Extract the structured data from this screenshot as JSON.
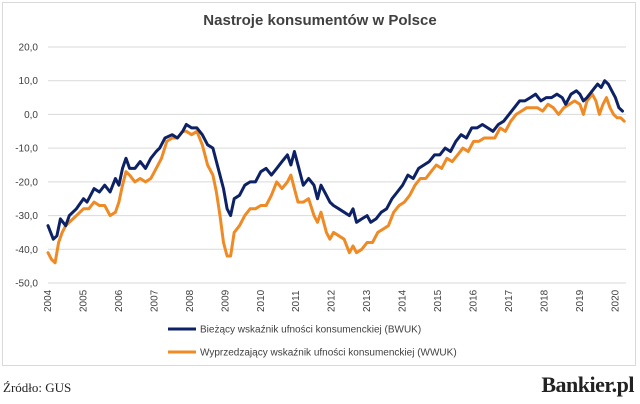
{
  "chart_data": {
    "type": "line",
    "title": "Nastroje konsumentów w Polsce",
    "xlabel": "",
    "ylabel": "",
    "ylim": [
      -50,
      20
    ],
    "y_ticks": [
      "20,0",
      "10,0",
      "0,0",
      "-10,0",
      "-20,0",
      "-30,0",
      "-40,0",
      "-50,0"
    ],
    "x_ticks": [
      "2004",
      "2005",
      "2006",
      "2007",
      "2008",
      "2009",
      "2010",
      "2011",
      "2012",
      "2013",
      "2014",
      "2015",
      "2016",
      "2017",
      "2018",
      "2019",
      "2020"
    ],
    "xlim": [
      2004.0,
      2020.3
    ],
    "grid": "horizontal",
    "legend_position": "bottom",
    "series": [
      {
        "name": "Bieżący wskaźnik ufności konsumenckiej (BWUK)",
        "color": "#0d2266",
        "points": [
          [
            2004.0,
            -33
          ],
          [
            2004.15,
            -37
          ],
          [
            2004.25,
            -36
          ],
          [
            2004.35,
            -31
          ],
          [
            2004.5,
            -33
          ],
          [
            2004.6,
            -30
          ],
          [
            2004.8,
            -28
          ],
          [
            2005.0,
            -25
          ],
          [
            2005.1,
            -26
          ],
          [
            2005.3,
            -22
          ],
          [
            2005.45,
            -23
          ],
          [
            2005.6,
            -21
          ],
          [
            2005.75,
            -23
          ],
          [
            2005.9,
            -19
          ],
          [
            2006.0,
            -21
          ],
          [
            2006.1,
            -16
          ],
          [
            2006.2,
            -13
          ],
          [
            2006.3,
            -16
          ],
          [
            2006.45,
            -16
          ],
          [
            2006.6,
            -14
          ],
          [
            2006.75,
            -16
          ],
          [
            2006.9,
            -13
          ],
          [
            2007.05,
            -11
          ],
          [
            2007.15,
            -10
          ],
          [
            2007.3,
            -7
          ],
          [
            2007.5,
            -6
          ],
          [
            2007.65,
            -7
          ],
          [
            2007.8,
            -5
          ],
          [
            2007.9,
            -3
          ],
          [
            2008.05,
            -4
          ],
          [
            2008.2,
            -4
          ],
          [
            2008.35,
            -6
          ],
          [
            2008.5,
            -9
          ],
          [
            2008.65,
            -10
          ],
          [
            2008.8,
            -16
          ],
          [
            2008.95,
            -22
          ],
          [
            2009.05,
            -28
          ],
          [
            2009.15,
            -30
          ],
          [
            2009.25,
            -25
          ],
          [
            2009.4,
            -24
          ],
          [
            2009.55,
            -21
          ],
          [
            2009.7,
            -20
          ],
          [
            2009.85,
            -20
          ],
          [
            2010.0,
            -17
          ],
          [
            2010.15,
            -16
          ],
          [
            2010.3,
            -18
          ],
          [
            2010.45,
            -16
          ],
          [
            2010.6,
            -14
          ],
          [
            2010.75,
            -12
          ],
          [
            2010.85,
            -15
          ],
          [
            2010.95,
            -11
          ],
          [
            2011.05,
            -15
          ],
          [
            2011.2,
            -21
          ],
          [
            2011.35,
            -19
          ],
          [
            2011.5,
            -21
          ],
          [
            2011.6,
            -25
          ],
          [
            2011.7,
            -21
          ],
          [
            2011.85,
            -24
          ],
          [
            2011.95,
            -26
          ],
          [
            2012.05,
            -27
          ],
          [
            2012.2,
            -28
          ],
          [
            2012.35,
            -29
          ],
          [
            2012.5,
            -30
          ],
          [
            2012.6,
            -28
          ],
          [
            2012.7,
            -32
          ],
          [
            2012.85,
            -31
          ],
          [
            2013.0,
            -30
          ],
          [
            2013.1,
            -32
          ],
          [
            2013.25,
            -31
          ],
          [
            2013.4,
            -29
          ],
          [
            2013.55,
            -28
          ],
          [
            2013.7,
            -25
          ],
          [
            2013.85,
            -23
          ],
          [
            2014.0,
            -21
          ],
          [
            2014.15,
            -18
          ],
          [
            2014.3,
            -19
          ],
          [
            2014.45,
            -16
          ],
          [
            2014.6,
            -15
          ],
          [
            2014.75,
            -14
          ],
          [
            2014.9,
            -12
          ],
          [
            2015.05,
            -12
          ],
          [
            2015.2,
            -10
          ],
          [
            2015.35,
            -11
          ],
          [
            2015.5,
            -8
          ],
          [
            2015.65,
            -6
          ],
          [
            2015.8,
            -7
          ],
          [
            2015.95,
            -4
          ],
          [
            2016.1,
            -4
          ],
          [
            2016.25,
            -3
          ],
          [
            2016.4,
            -4
          ],
          [
            2016.55,
            -5
          ],
          [
            2016.7,
            -3
          ],
          [
            2016.85,
            -2
          ],
          [
            2017.0,
            0
          ],
          [
            2017.15,
            2
          ],
          [
            2017.3,
            4
          ],
          [
            2017.45,
            4
          ],
          [
            2017.6,
            5
          ],
          [
            2017.75,
            6
          ],
          [
            2017.9,
            4
          ],
          [
            2018.05,
            5
          ],
          [
            2018.2,
            5
          ],
          [
            2018.35,
            6
          ],
          [
            2018.5,
            5
          ],
          [
            2018.6,
            3
          ],
          [
            2018.75,
            6
          ],
          [
            2018.9,
            7
          ],
          [
            2019.0,
            6
          ],
          [
            2019.1,
            4
          ],
          [
            2019.2,
            5
          ],
          [
            2019.35,
            7
          ],
          [
            2019.5,
            9
          ],
          [
            2019.6,
            8
          ],
          [
            2019.7,
            10
          ],
          [
            2019.8,
            9
          ],
          [
            2019.9,
            7
          ],
          [
            2020.0,
            5
          ],
          [
            2020.1,
            2
          ],
          [
            2020.2,
            1
          ]
        ]
      },
      {
        "name": "Wyprzedzający wskaźnik ufności konsumenckiej (WWUK)",
        "color": "#f08a24",
        "points": [
          [
            2004.0,
            -41
          ],
          [
            2004.1,
            -43
          ],
          [
            2004.2,
            -44
          ],
          [
            2004.3,
            -38
          ],
          [
            2004.4,
            -35
          ],
          [
            2004.5,
            -33
          ],
          [
            2004.6,
            -32
          ],
          [
            2004.8,
            -30
          ],
          [
            2005.0,
            -28
          ],
          [
            2005.15,
            -28
          ],
          [
            2005.3,
            -26
          ],
          [
            2005.45,
            -27
          ],
          [
            2005.6,
            -27
          ],
          [
            2005.75,
            -30
          ],
          [
            2005.9,
            -29
          ],
          [
            2006.0,
            -26
          ],
          [
            2006.1,
            -21
          ],
          [
            2006.2,
            -17
          ],
          [
            2006.3,
            -18
          ],
          [
            2006.45,
            -20
          ],
          [
            2006.6,
            -19
          ],
          [
            2006.75,
            -20
          ],
          [
            2006.9,
            -19
          ],
          [
            2007.05,
            -16
          ],
          [
            2007.2,
            -13
          ],
          [
            2007.35,
            -8
          ],
          [
            2007.5,
            -7
          ],
          [
            2007.65,
            -7
          ],
          [
            2007.8,
            -5
          ],
          [
            2007.9,
            -5
          ],
          [
            2008.05,
            -6
          ],
          [
            2008.2,
            -5
          ],
          [
            2008.35,
            -9
          ],
          [
            2008.5,
            -15
          ],
          [
            2008.65,
            -18
          ],
          [
            2008.75,
            -23
          ],
          [
            2008.85,
            -30
          ],
          [
            2008.95,
            -38
          ],
          [
            2009.05,
            -42
          ],
          [
            2009.15,
            -42
          ],
          [
            2009.25,
            -35
          ],
          [
            2009.4,
            -33
          ],
          [
            2009.55,
            -30
          ],
          [
            2009.7,
            -28
          ],
          [
            2009.85,
            -28
          ],
          [
            2010.0,
            -27
          ],
          [
            2010.15,
            -27
          ],
          [
            2010.3,
            -24
          ],
          [
            2010.45,
            -20
          ],
          [
            2010.6,
            -22
          ],
          [
            2010.75,
            -20
          ],
          [
            2010.85,
            -18
          ],
          [
            2010.95,
            -22
          ],
          [
            2011.05,
            -26
          ],
          [
            2011.2,
            -26
          ],
          [
            2011.35,
            -25
          ],
          [
            2011.5,
            -30
          ],
          [
            2011.6,
            -32
          ],
          [
            2011.7,
            -29
          ],
          [
            2011.85,
            -35
          ],
          [
            2011.95,
            -37
          ],
          [
            2012.05,
            -35
          ],
          [
            2012.2,
            -36
          ],
          [
            2012.35,
            -37
          ],
          [
            2012.5,
            -41
          ],
          [
            2012.6,
            -39
          ],
          [
            2012.7,
            -41
          ],
          [
            2012.85,
            -40
          ],
          [
            2013.0,
            -38
          ],
          [
            2013.15,
            -38
          ],
          [
            2013.3,
            -35
          ],
          [
            2013.45,
            -34
          ],
          [
            2013.6,
            -33
          ],
          [
            2013.75,
            -29
          ],
          [
            2013.9,
            -27
          ],
          [
            2014.05,
            -26
          ],
          [
            2014.2,
            -24
          ],
          [
            2014.35,
            -21
          ],
          [
            2014.5,
            -19
          ],
          [
            2014.65,
            -19
          ],
          [
            2014.8,
            -17
          ],
          [
            2014.95,
            -15
          ],
          [
            2015.1,
            -16
          ],
          [
            2015.25,
            -13
          ],
          [
            2015.4,
            -14
          ],
          [
            2015.55,
            -12
          ],
          [
            2015.7,
            -10
          ],
          [
            2015.85,
            -11
          ],
          [
            2016.0,
            -8
          ],
          [
            2016.15,
            -8
          ],
          [
            2016.3,
            -7
          ],
          [
            2016.45,
            -7
          ],
          [
            2016.6,
            -7
          ],
          [
            2016.75,
            -4
          ],
          [
            2016.9,
            -5
          ],
          [
            2017.05,
            -2
          ],
          [
            2017.2,
            0
          ],
          [
            2017.35,
            1
          ],
          [
            2017.5,
            2
          ],
          [
            2017.65,
            2
          ],
          [
            2017.8,
            2
          ],
          [
            2017.95,
            1
          ],
          [
            2018.1,
            3
          ],
          [
            2018.25,
            2
          ],
          [
            2018.4,
            0
          ],
          [
            2018.55,
            2
          ],
          [
            2018.7,
            3
          ],
          [
            2018.85,
            4
          ],
          [
            2019.0,
            3
          ],
          [
            2019.1,
            0
          ],
          [
            2019.2,
            4
          ],
          [
            2019.35,
            6
          ],
          [
            2019.45,
            4
          ],
          [
            2019.55,
            0
          ],
          [
            2019.65,
            3
          ],
          [
            2019.75,
            5
          ],
          [
            2019.85,
            2
          ],
          [
            2019.95,
            0
          ],
          [
            2020.05,
            -1
          ],
          [
            2020.15,
            -1
          ],
          [
            2020.25,
            -2
          ]
        ]
      }
    ]
  },
  "footer": {
    "source": "Źródło: GUS",
    "logo": "Bankier.pl"
  }
}
